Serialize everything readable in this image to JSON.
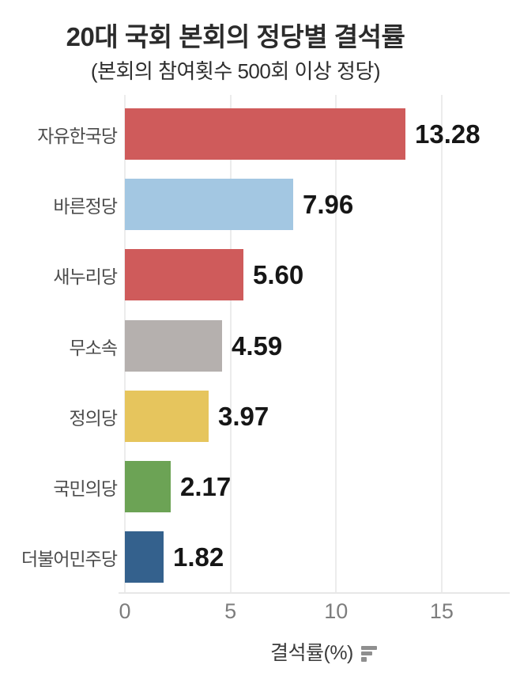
{
  "title": "20대 국회 본회의 정당별 결석률",
  "subtitle": "(본회의 참여횟수 500회 이상 정당)",
  "chart_data": {
    "type": "bar",
    "orientation": "horizontal",
    "title": "20대 국회 본회의 정당별 결석률",
    "subtitle": "(본회의 참여횟수 500회 이상 정당)",
    "categories": [
      "자유한국당",
      "바른정당",
      "새누리당",
      "무소속",
      "정의당",
      "국민의당",
      "더불어민주당"
    ],
    "values": [
      13.28,
      7.96,
      5.6,
      4.59,
      3.97,
      2.17,
      1.82
    ],
    "value_labels": [
      "13.28",
      "7.96",
      "5.60",
      "4.59",
      "3.97",
      "2.17",
      "1.82"
    ],
    "bar_colors": [
      "#cf5b5b",
      "#a3c7e2",
      "#cf5b5b",
      "#b5b0ae",
      "#e6c55d",
      "#6ca355",
      "#34618d"
    ],
    "xlabel": "결석률(%)",
    "x_ticks": [
      "0",
      "5",
      "10",
      "15"
    ],
    "x_tick_values": [
      0,
      5,
      10,
      15
    ],
    "xlim": [
      0,
      18.2
    ],
    "grid": true,
    "legend": "none"
  },
  "style_colors": {
    "background": "#ffffff",
    "gridline": "#ececec",
    "axis_line": "#e7e7e7",
    "tick_text": "#7d7d7d",
    "category_text": "#4c4c4c",
    "value_text": "#161616",
    "title_text": "#2b2b2b",
    "logo_icon": "#8f8f8f"
  },
  "icons": {
    "footer_logo": "sort-descending-bars-icon"
  }
}
